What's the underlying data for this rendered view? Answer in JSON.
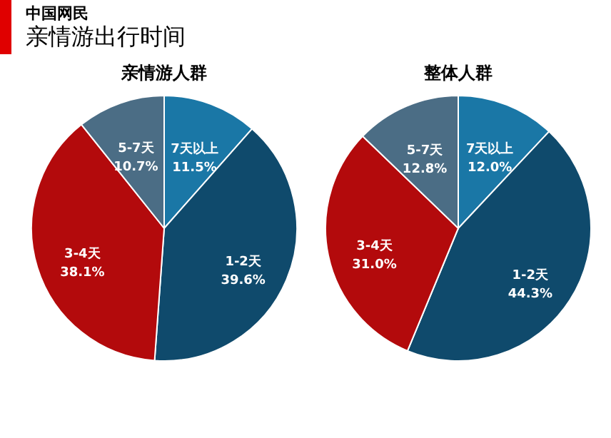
{
  "chart_data": [
    {
      "type": "pie",
      "title": "亲情游人群",
      "annotations": [
        "中国网民",
        "亲情游出行时间"
      ],
      "categories": [
        "7天以上",
        "1-2天",
        "3-4天",
        "5-7天"
      ],
      "values": [
        11.5,
        39.6,
        38.1,
        10.7
      ],
      "value_labels": [
        "11.5%",
        "39.6%",
        "38.1%",
        "10.7%"
      ],
      "colors": [
        "#1a77a6",
        "#0f4a6c",
        "#b30a0c",
        "#4b6d85"
      ],
      "legend": false
    },
    {
      "type": "pie",
      "title": "整体人群",
      "categories": [
        "7天以上",
        "1-2天",
        "3-4天",
        "5-7天"
      ],
      "values": [
        12.0,
        44.3,
        31.0,
        12.8
      ],
      "value_labels": [
        "12.0%",
        "44.3%",
        "31.0%",
        "12.8%"
      ],
      "colors": [
        "#1a77a6",
        "#0f4a6c",
        "#b30a0c",
        "#4b6d85"
      ],
      "legend": false
    }
  ]
}
